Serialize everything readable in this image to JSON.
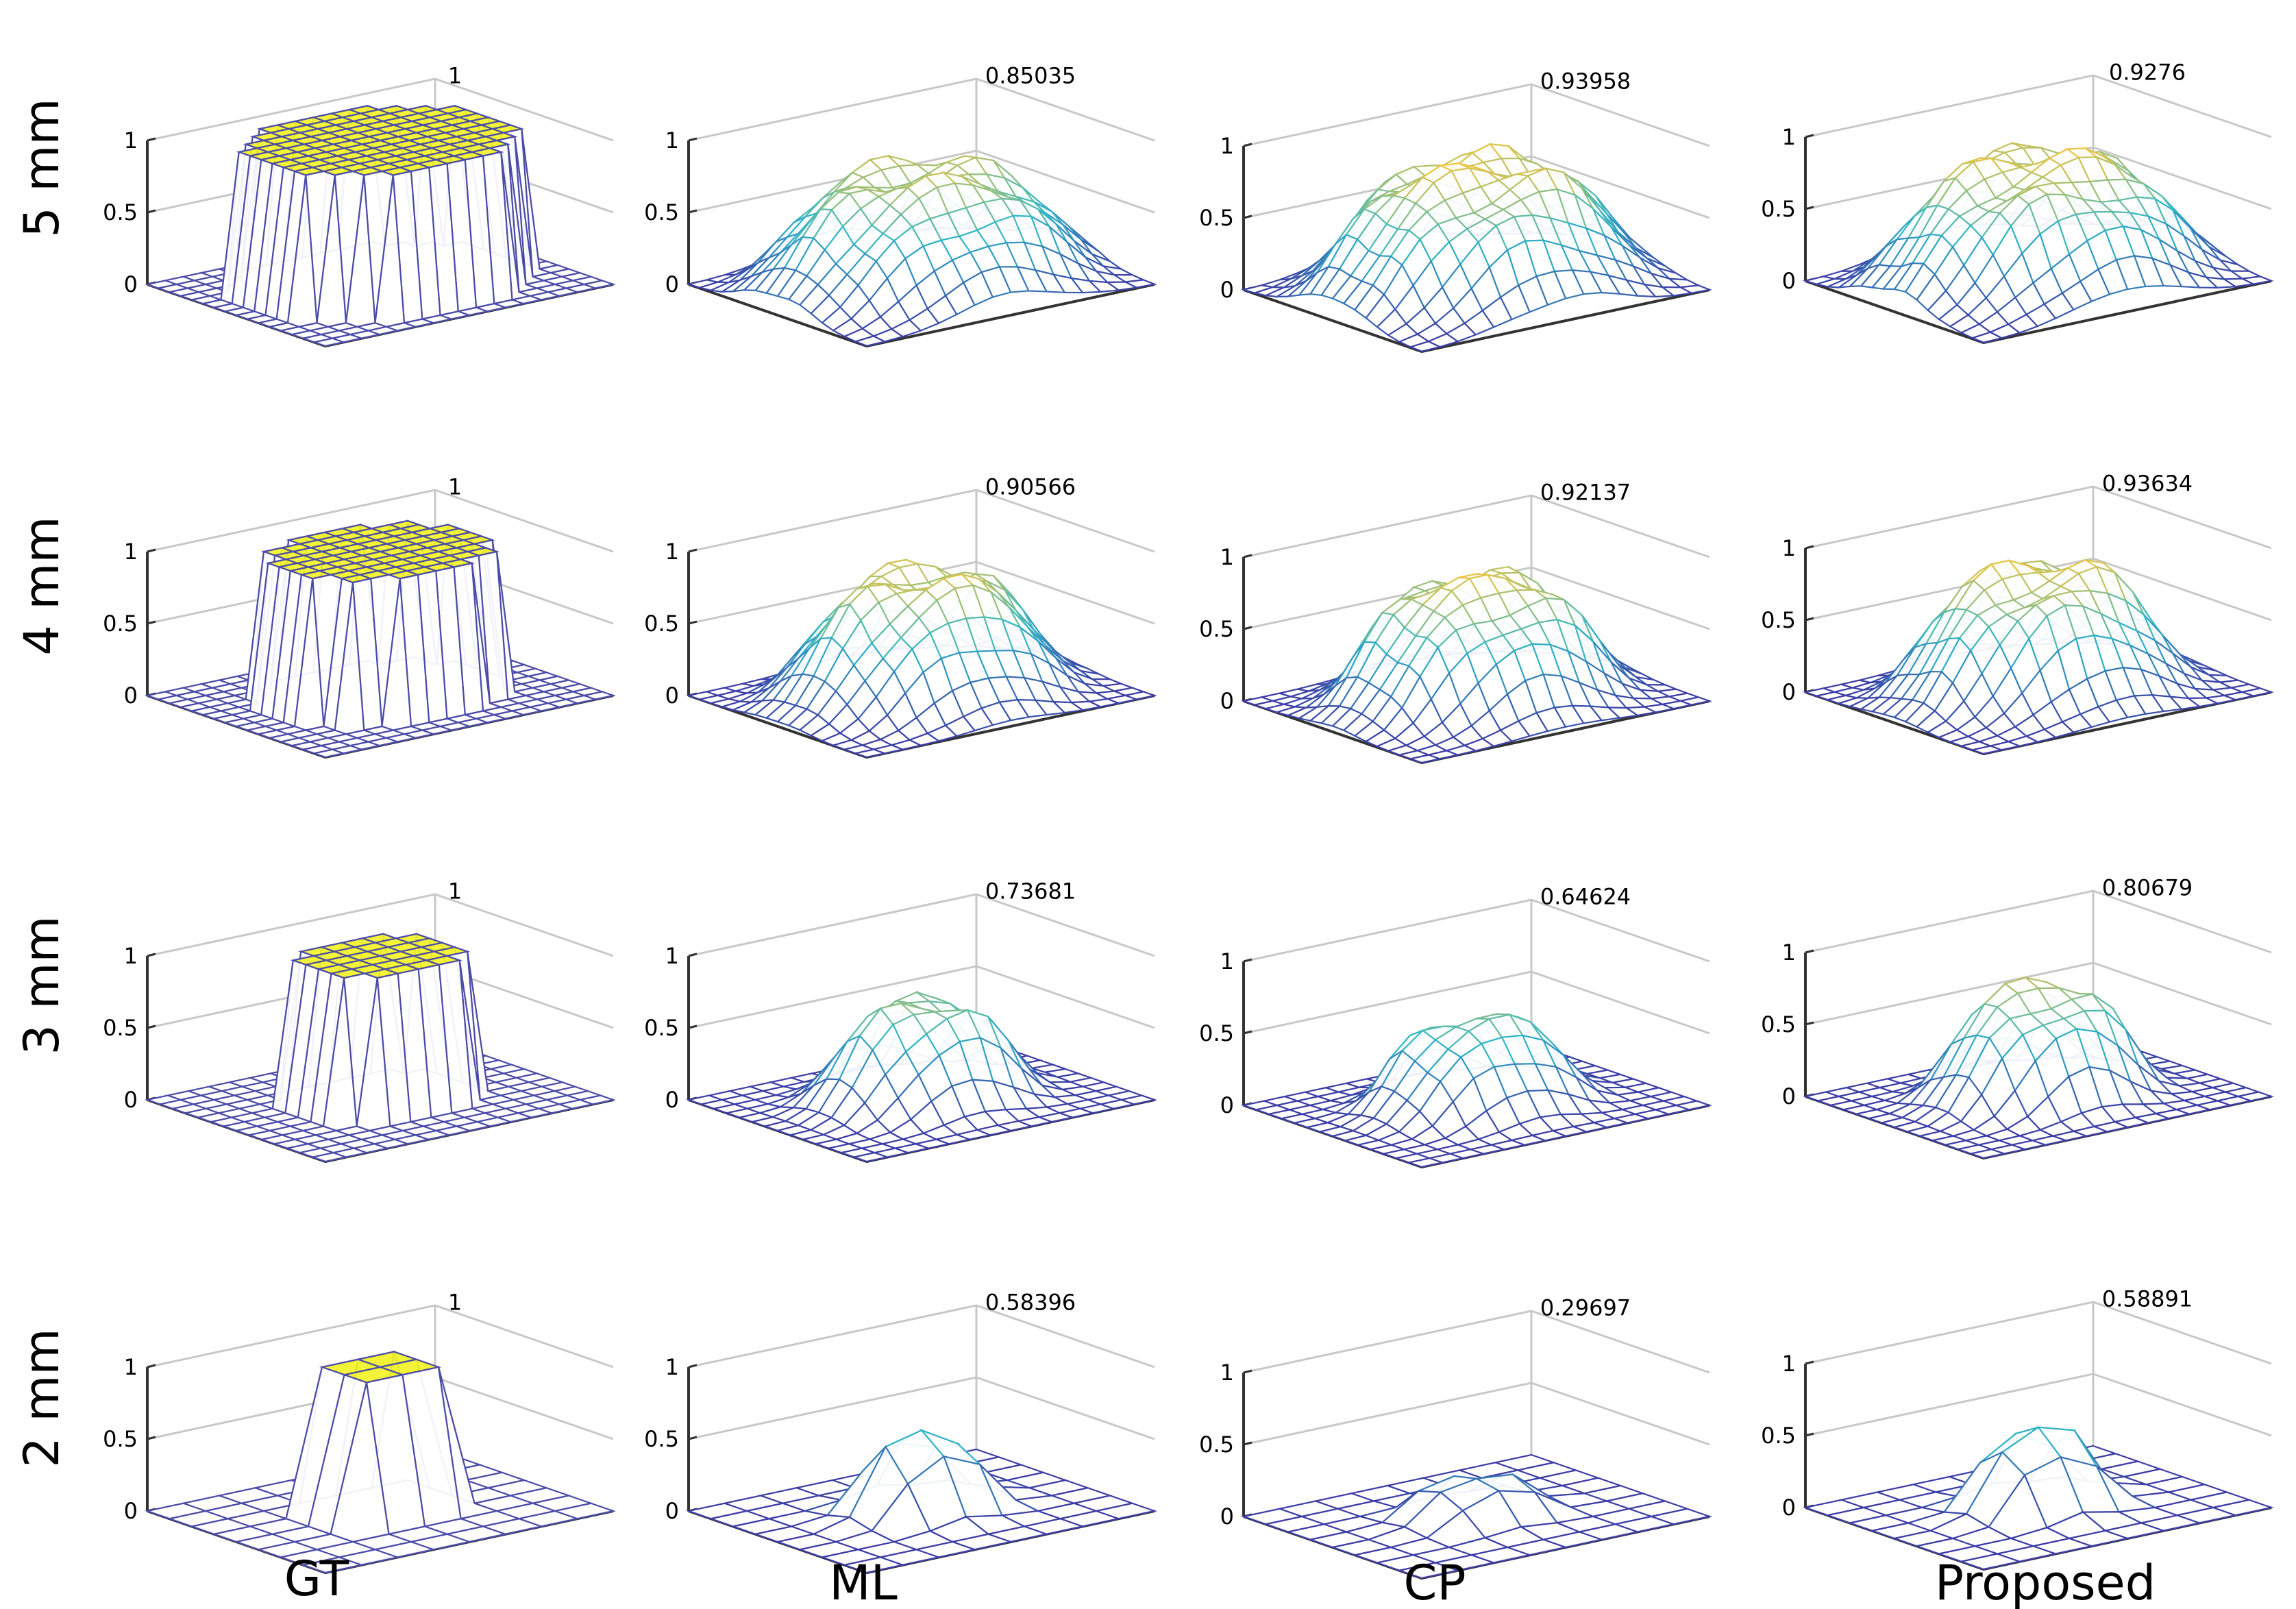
{
  "chart_data": {
    "type": "surface3d-grid",
    "title": "",
    "row_labels": [
      "5 mm",
      "4 mm",
      "3 mm",
      "2 mm"
    ],
    "column_labels": [
      "GT",
      "ML",
      "CP",
      "Proposed"
    ],
    "z_ticks": [
      "0",
      "0.5",
      "1"
    ],
    "zlim": [
      0,
      1
    ],
    "panels": [
      [
        {
          "method": "GT",
          "size": "5 mm",
          "peak": 1,
          "peak_label": "1"
        },
        {
          "method": "ML",
          "size": "5 mm",
          "peak": 0.85035,
          "peak_label": "0.85035"
        },
        {
          "method": "CP",
          "size": "5 mm",
          "peak": 0.93958,
          "peak_label": "0.93958"
        },
        {
          "method": "Proposed",
          "size": "5 mm",
          "peak": 0.9276,
          "peak_label": "0.9276"
        }
      ],
      [
        {
          "method": "GT",
          "size": "4 mm",
          "peak": 1,
          "peak_label": "1"
        },
        {
          "method": "ML",
          "size": "4 mm",
          "peak": 0.90566,
          "peak_label": "0.90566"
        },
        {
          "method": "CP",
          "size": "4 mm",
          "peak": 0.92137,
          "peak_label": "0.92137"
        },
        {
          "method": "Proposed",
          "size": "4 mm",
          "peak": 0.93634,
          "peak_label": "0.93634"
        }
      ],
      [
        {
          "method": "GT",
          "size": "3 mm",
          "peak": 1,
          "peak_label": "1"
        },
        {
          "method": "ML",
          "size": "3 mm",
          "peak": 0.73681,
          "peak_label": "0.73681"
        },
        {
          "method": "CP",
          "size": "3 mm",
          "peak": 0.64624,
          "peak_label": "0.64624"
        },
        {
          "method": "Proposed",
          "size": "3 mm",
          "peak": 0.80679,
          "peak_label": "0.80679"
        }
      ],
      [
        {
          "method": "GT",
          "size": "2 mm",
          "peak": 1,
          "peak_label": "1"
        },
        {
          "method": "ML",
          "size": "2 mm",
          "peak": 0.58396,
          "peak_label": "0.58396"
        },
        {
          "method": "CP",
          "size": "2 mm",
          "peak": 0.29697,
          "peak_label": "0.29697"
        },
        {
          "method": "Proposed",
          "size": "2 mm",
          "peak": 0.58891,
          "peak_label": "0.58891"
        }
      ]
    ],
    "colors": {
      "gt_wire": "#4b4ba8",
      "gt_top": "#f2f226",
      "low": "#3d3da6",
      "mid": "#2fb8c8",
      "high": "#f2c640",
      "axis": "#333333",
      "grid": "#c8c8c8"
    }
  }
}
